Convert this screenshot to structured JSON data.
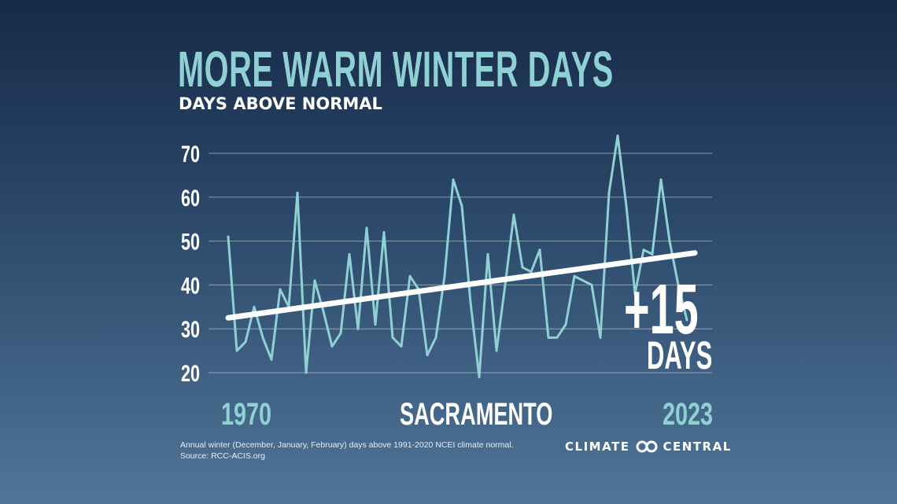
{
  "chart_data": {
    "type": "line",
    "title": "MORE WARM WINTER DAYS",
    "subtitle": "DAYS ABOVE NORMAL",
    "location_label": "SACRAMENTO",
    "x_start_label": "1970",
    "x_end_label": "2023",
    "xlim": [
      1970,
      2023
    ],
    "ylim": [
      20,
      75
    ],
    "yticks": [
      20,
      30,
      40,
      50,
      60,
      70
    ],
    "grid": true,
    "x": [
      1970,
      1971,
      1972,
      1973,
      1974,
      1975,
      1976,
      1977,
      1978,
      1979,
      1980,
      1981,
      1982,
      1983,
      1984,
      1985,
      1986,
      1987,
      1988,
      1989,
      1990,
      1991,
      1992,
      1993,
      1994,
      1995,
      1996,
      1997,
      1998,
      1999,
      2000,
      2001,
      2002,
      2003,
      2004,
      2005,
      2006,
      2007,
      2008,
      2009,
      2010,
      2011,
      2012,
      2013,
      2014,
      2015,
      2016,
      2017,
      2018,
      2019,
      2020,
      2021,
      2022,
      2023
    ],
    "values": [
      51,
      25,
      27,
      35,
      28,
      23,
      39,
      35,
      61,
      20,
      41,
      34,
      26,
      29,
      47,
      30,
      53,
      31,
      52,
      28,
      26,
      42,
      39,
      24,
      28,
      42,
      64,
      58,
      36,
      19,
      47,
      25,
      40,
      56,
      44,
      43,
      48,
      28,
      28,
      31,
      42,
      41,
      40,
      28,
      61,
      74,
      58,
      38,
      48,
      47,
      64,
      50,
      40,
      32
    ],
    "trend": {
      "start": 32.5,
      "end": 47.3
    },
    "annotation": {
      "value": "+15",
      "unit": "DAYS"
    },
    "line_color": "#8fd0d3",
    "trend_color": "#ffffff"
  },
  "footer": {
    "note_line1": "Annual winter (December, January, February) days above 1991-2020 NCEI climate normal.",
    "note_line2": "Source: RCC-ACIS.org",
    "brand": "CLIMATE CENTRAL",
    "brand_left": "CLIMATE",
    "brand_right": "CENTRAL",
    "brand_icon": "linked-rings-logo"
  }
}
